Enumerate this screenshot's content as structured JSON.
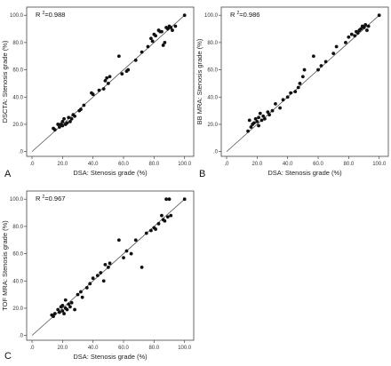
{
  "chart_data": [
    {
      "type": "scatter",
      "panel_label": "A",
      "r2_prefix": "R",
      "r2_exp": "2",
      "r2_value": "=0.988",
      "xlabel": "DSA: Stenosis grade (%)",
      "ylabel": "DSCTA: Stenosis grade (%)",
      "xlim": [
        0,
        100
      ],
      "ylim": [
        0,
        100
      ],
      "xticks": [
        ".0",
        "20.0",
        "40.0",
        "60.0",
        "80.0",
        "100.0"
      ],
      "yticks": [
        ".0",
        "20.0",
        "40.0",
        "60.0",
        "80.0",
        "100.0"
      ],
      "reference_line": "identity",
      "points": [
        [
          14,
          17
        ],
        [
          15,
          16
        ],
        [
          17,
          20
        ],
        [
          18,
          18
        ],
        [
          19,
          20
        ],
        [
          20,
          19
        ],
        [
          20,
          22
        ],
        [
          21,
          24
        ],
        [
          22,
          20
        ],
        [
          23,
          21
        ],
        [
          24,
          25
        ],
        [
          25,
          22
        ],
        [
          26,
          24
        ],
        [
          27,
          27
        ],
        [
          28,
          26
        ],
        [
          31,
          30
        ],
        [
          32,
          31
        ],
        [
          34,
          34
        ],
        [
          39,
          43
        ],
        [
          40,
          42
        ],
        [
          44,
          45
        ],
        [
          47,
          46
        ],
        [
          48,
          52
        ],
        [
          49,
          54
        ],
        [
          50,
          50
        ],
        [
          51,
          55
        ],
        [
          57,
          70
        ],
        [
          59,
          57
        ],
        [
          62,
          59
        ],
        [
          63,
          60
        ],
        [
          68,
          67
        ],
        [
          72,
          73
        ],
        [
          76,
          77
        ],
        [
          78,
          83
        ],
        [
          79,
          81
        ],
        [
          80,
          86
        ],
        [
          81,
          85
        ],
        [
          83,
          89
        ],
        [
          84,
          88
        ],
        [
          85,
          88
        ],
        [
          86,
          78
        ],
        [
          87,
          80
        ],
        [
          88,
          91
        ],
        [
          89,
          90
        ],
        [
          90,
          92
        ],
        [
          91,
          91
        ],
        [
          92,
          89
        ],
        [
          94,
          92
        ],
        [
          100,
          100
        ]
      ]
    },
    {
      "type": "scatter",
      "panel_label": "B",
      "r2_prefix": "R",
      "r2_exp": "2",
      "r2_value": "=0.986",
      "xlabel": "DSA: Stenosis grade (%)",
      "ylabel": "BB MRA: Stenosis grade (%)",
      "xlim": [
        0,
        100
      ],
      "ylim": [
        0,
        100
      ],
      "xticks": [
        ".0",
        "20.0",
        "40.0",
        "60.0",
        "80.0",
        "100.0"
      ],
      "yticks": [
        ".0",
        "20.0",
        "40.0",
        "60.0",
        "80.0",
        "100.0"
      ],
      "reference_line": "identity",
      "points": [
        [
          14,
          15
        ],
        [
          15,
          23
        ],
        [
          16,
          18
        ],
        [
          17,
          20
        ],
        [
          18,
          21
        ],
        [
          19,
          24
        ],
        [
          20,
          22
        ],
        [
          21,
          19
        ],
        [
          21,
          25
        ],
        [
          22,
          28
        ],
        [
          23,
          23
        ],
        [
          24,
          26
        ],
        [
          25,
          24
        ],
        [
          27,
          29
        ],
        [
          28,
          27
        ],
        [
          30,
          30
        ],
        [
          32,
          35
        ],
        [
          35,
          32
        ],
        [
          37,
          38
        ],
        [
          40,
          40
        ],
        [
          42,
          43
        ],
        [
          45,
          44
        ],
        [
          47,
          47
        ],
        [
          48,
          50
        ],
        [
          50,
          55
        ],
        [
          51,
          60
        ],
        [
          57,
          70
        ],
        [
          60,
          60
        ],
        [
          62,
          63
        ],
        [
          65,
          66
        ],
        [
          70,
          72
        ],
        [
          72,
          77
        ],
        [
          78,
          80
        ],
        [
          80,
          84
        ],
        [
          82,
          86
        ],
        [
          84,
          85
        ],
        [
          85,
          88
        ],
        [
          86,
          87
        ],
        [
          87,
          89
        ],
        [
          88,
          90
        ],
        [
          89,
          92
        ],
        [
          90,
          91
        ],
        [
          91,
          93
        ],
        [
          92,
          89
        ],
        [
          93,
          92
        ],
        [
          100,
          100
        ]
      ]
    },
    {
      "type": "scatter",
      "panel_label": "C",
      "r2_prefix": "R",
      "r2_exp": "2",
      "r2_value": "=0.967",
      "xlabel": "DSA: Stenosis grade (%)",
      "ylabel": "TOF MRA: Stenosis grade (%)",
      "xlim": [
        0,
        100
      ],
      "ylim": [
        0,
        100
      ],
      "xticks": [
        ".0",
        "20.0",
        "40.0",
        "60.0",
        "80.0",
        "100.0"
      ],
      "yticks": [
        ".0",
        "20.0",
        "40.0",
        "60.0",
        "80.0",
        "100.0"
      ],
      "reference_line": "identity",
      "points": [
        [
          13,
          15
        ],
        [
          14,
          14
        ],
        [
          15,
          16
        ],
        [
          17,
          19
        ],
        [
          18,
          17
        ],
        [
          19,
          21
        ],
        [
          20,
          18
        ],
        [
          20,
          22
        ],
        [
          21,
          16
        ],
        [
          22,
          20
        ],
        [
          22,
          26
        ],
        [
          23,
          19
        ],
        [
          24,
          23
        ],
        [
          25,
          21
        ],
        [
          26,
          24
        ],
        [
          28,
          19
        ],
        [
          30,
          30
        ],
        [
          32,
          32
        ],
        [
          33,
          28
        ],
        [
          36,
          35
        ],
        [
          38,
          38
        ],
        [
          40,
          42
        ],
        [
          43,
          44
        ],
        [
          45,
          46
        ],
        [
          47,
          40
        ],
        [
          48,
          52
        ],
        [
          50,
          50
        ],
        [
          51,
          53
        ],
        [
          57,
          70
        ],
        [
          60,
          57
        ],
        [
          62,
          62
        ],
        [
          65,
          60
        ],
        [
          68,
          70
        ],
        [
          72,
          50
        ],
        [
          75,
          75
        ],
        [
          78,
          77
        ],
        [
          80,
          79
        ],
        [
          81,
          78
        ],
        [
          83,
          82
        ],
        [
          85,
          88
        ],
        [
          86,
          85
        ],
        [
          87,
          84
        ],
        [
          88,
          100
        ],
        [
          89,
          87
        ],
        [
          90,
          100
        ],
        [
          91,
          88
        ],
        [
          100,
          100
        ]
      ]
    }
  ]
}
